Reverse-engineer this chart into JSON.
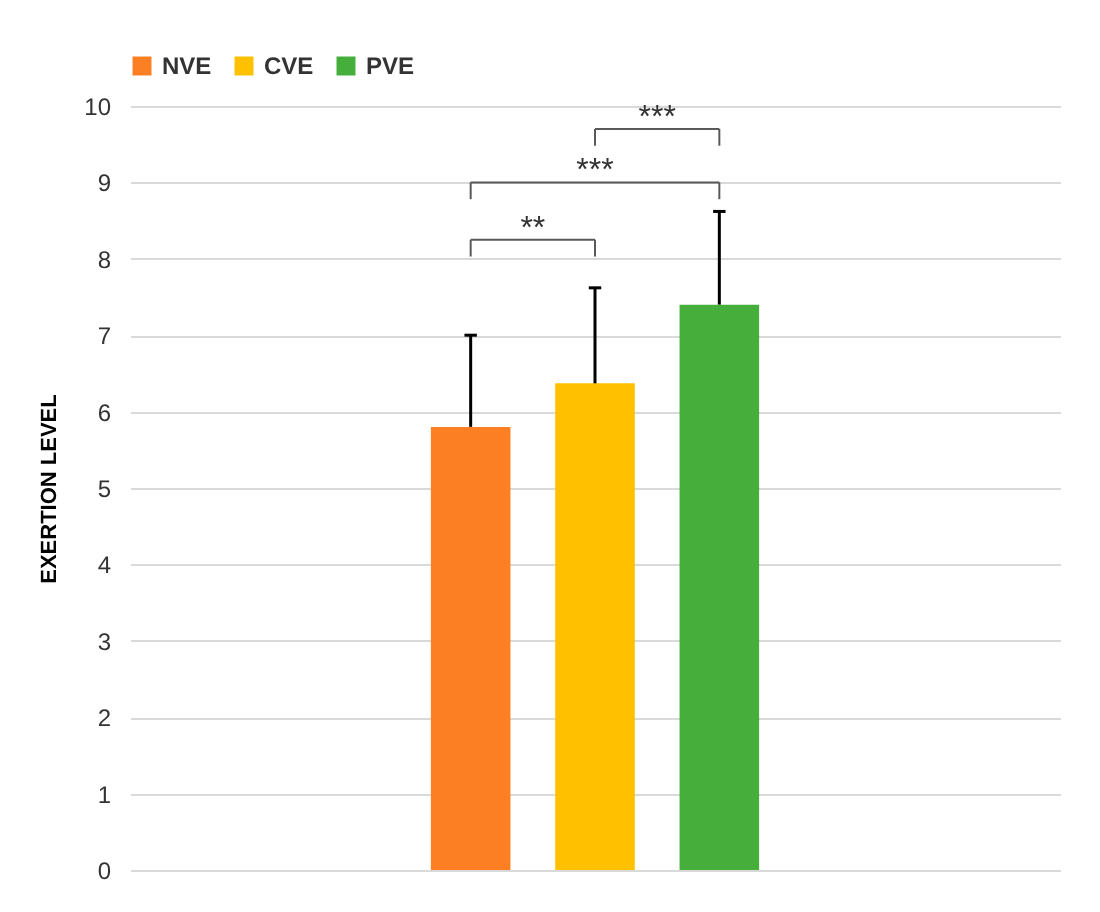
{
  "chart_data": {
    "type": "bar",
    "ylabel": "EXERTION LEVEL",
    "categories": [
      null
    ],
    "series": [
      {
        "name": "NVE",
        "color": "#fd7f23",
        "values": [
          5.8
        ],
        "errors": [
          [
            5.8,
            7.0
          ]
        ]
      },
      {
        "name": "CVE",
        "color": "#ffc000",
        "values": [
          6.37
        ],
        "errors": [
          [
            6.37,
            7.62
          ]
        ]
      },
      {
        "name": "PVE",
        "color": "#46af3c",
        "values": [
          7.4
        ],
        "errors": [
          [
            7.4,
            8.62
          ]
        ]
      }
    ],
    "ylim": [
      0,
      10
    ],
    "yticks": [
      0,
      1,
      2,
      3,
      4,
      5,
      6,
      7,
      8,
      9,
      10
    ],
    "grid": "y",
    "legend": "top",
    "annotations": [
      "**",
      "***",
      "***"
    ]
  }
}
